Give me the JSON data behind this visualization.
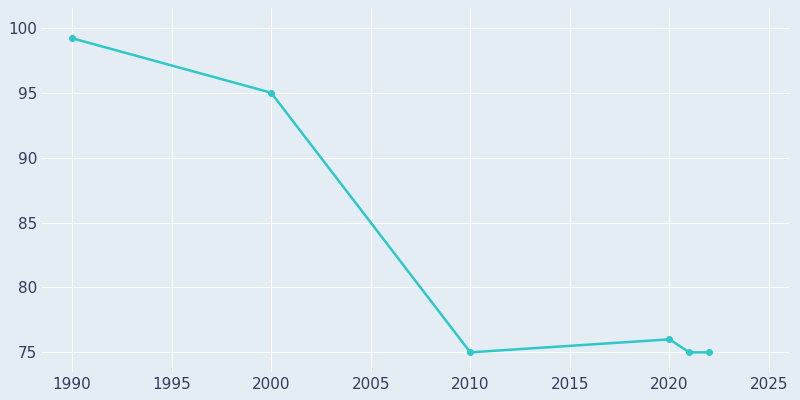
{
  "years": [
    1990,
    2000,
    2010,
    2020,
    2021,
    2022
  ],
  "values": [
    99.2,
    95.0,
    75.0,
    76.0,
    75.0,
    75.0
  ],
  "line_color": "#2ec8c8",
  "marker_color": "#2ec8c8",
  "bg_color": "#e4ecf4",
  "grid_color": "#ffffff",
  "xlim": [
    1988.5,
    2026
  ],
  "ylim": [
    73.5,
    101.5
  ],
  "xticks": [
    1990,
    1995,
    2000,
    2005,
    2010,
    2015,
    2020,
    2025
  ],
  "yticks": [
    75,
    80,
    85,
    90,
    95,
    100
  ],
  "tick_color": "#3a3a5c",
  "linewidth": 1.8,
  "markersize": 4.0
}
